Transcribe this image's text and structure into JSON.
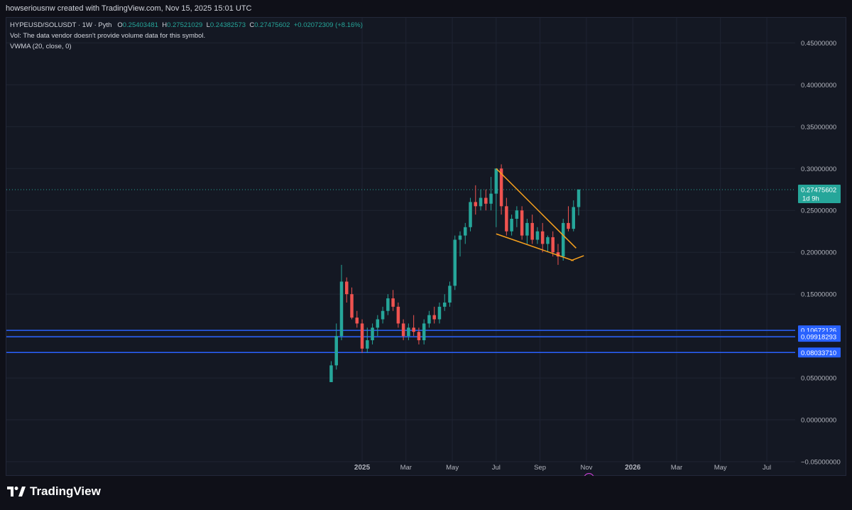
{
  "header": {
    "attribution": "howseriousnw created with TradingView.com, Nov 15, 2025 15:01 UTC"
  },
  "legend": {
    "symbol": "HYPEUSD/SOLUSDT · 1W · Pyth",
    "o_label": "O",
    "o_value": "0.25403481",
    "h_label": "H",
    "h_value": "0.27521029",
    "l_label": "L",
    "l_value": "0.24382573",
    "c_label": "C",
    "c_value": "0.27475602",
    "change": "+0.02072309 (+8.16%)",
    "vol_note": "Vol: The data vendor doesn't provide volume data for this symbol.",
    "indicator": "VWMA (20, close, 0)"
  },
  "footer": {
    "brand": "TradingView"
  },
  "colors": {
    "up": "#26a69a",
    "down": "#ef5350",
    "pattern": "#f7a01d",
    "level": "#2962ff",
    "background": "#141823",
    "grid": "#1f2433"
  },
  "chart_data": {
    "type": "candlestick",
    "timeframe": "1W",
    "ylim": [
      -0.05,
      0.48
    ],
    "y_ticks": [
      "0.45000000",
      "0.40000000",
      "0.35000000",
      "0.30000000",
      "0.25000000",
      "0.20000000",
      "0.15000000",
      "0.10000000",
      "0.05000000",
      "0.00000000",
      "−0.05000000"
    ],
    "y_tick_values": [
      0.45,
      0.4,
      0.35,
      0.3,
      0.25,
      0.2,
      0.15,
      0.1,
      0.05,
      0.0,
      -0.05
    ],
    "x_ticks": [
      {
        "label": "2025",
        "week": 3
      },
      {
        "label": "Mar",
        "week": 11.5
      },
      {
        "label": "May",
        "week": 20.5
      },
      {
        "label": "Jul",
        "week": 29
      },
      {
        "label": "Sep",
        "week": 37.5
      },
      {
        "label": "Nov",
        "week": 46.5
      },
      {
        "label": "2026",
        "week": 55.5
      },
      {
        "label": "Mar",
        "week": 64
      },
      {
        "label": "May",
        "week": 72.5
      },
      {
        "label": "Jul",
        "week": 81.5
      }
    ],
    "x_range_weeks": [
      -66,
      87
    ],
    "candles": [
      [
        0.045,
        0.07,
        0.045,
        0.065
      ],
      [
        0.065,
        0.115,
        0.06,
        0.1
      ],
      [
        0.1,
        0.185,
        0.095,
        0.165
      ],
      [
        0.165,
        0.17,
        0.14,
        0.15
      ],
      [
        0.15,
        0.158,
        0.12,
        0.122
      ],
      [
        0.122,
        0.13,
        0.11,
        0.115
      ],
      [
        0.115,
        0.12,
        0.08,
        0.085
      ],
      [
        0.085,
        0.11,
        0.08,
        0.095
      ],
      [
        0.095,
        0.115,
        0.09,
        0.11
      ],
      [
        0.11,
        0.125,
        0.1,
        0.12
      ],
      [
        0.12,
        0.135,
        0.115,
        0.13
      ],
      [
        0.13,
        0.15,
        0.125,
        0.145
      ],
      [
        0.145,
        0.155,
        0.13,
        0.135
      ],
      [
        0.135,
        0.14,
        0.11,
        0.115
      ],
      [
        0.115,
        0.12,
        0.095,
        0.1
      ],
      [
        0.1,
        0.115,
        0.095,
        0.11
      ],
      [
        0.11,
        0.125,
        0.1,
        0.105
      ],
      [
        0.105,
        0.11,
        0.09,
        0.095
      ],
      [
        0.095,
        0.12,
        0.09,
        0.115
      ],
      [
        0.115,
        0.13,
        0.11,
        0.125
      ],
      [
        0.125,
        0.135,
        0.115,
        0.12
      ],
      [
        0.12,
        0.14,
        0.115,
        0.135
      ],
      [
        0.135,
        0.15,
        0.13,
        0.14
      ],
      [
        0.14,
        0.165,
        0.135,
        0.16
      ],
      [
        0.16,
        0.22,
        0.155,
        0.215
      ],
      [
        0.215,
        0.225,
        0.195,
        0.22
      ],
      [
        0.22,
        0.235,
        0.21,
        0.23
      ],
      [
        0.23,
        0.265,
        0.225,
        0.26
      ],
      [
        0.26,
        0.28,
        0.245,
        0.255
      ],
      [
        0.255,
        0.275,
        0.25,
        0.265
      ],
      [
        0.265,
        0.275,
        0.25,
        0.258
      ],
      [
        0.258,
        0.29,
        0.25,
        0.27
      ],
      [
        0.27,
        0.3,
        0.23,
        0.3
      ],
      [
        0.3,
        0.305,
        0.245,
        0.255
      ],
      [
        0.255,
        0.265,
        0.22,
        0.225
      ],
      [
        0.225,
        0.245,
        0.22,
        0.24
      ],
      [
        0.24,
        0.255,
        0.23,
        0.25
      ],
      [
        0.25,
        0.255,
        0.215,
        0.22
      ],
      [
        0.22,
        0.24,
        0.21,
        0.235
      ],
      [
        0.235,
        0.245,
        0.21,
        0.215
      ],
      [
        0.215,
        0.23,
        0.21,
        0.225
      ],
      [
        0.225,
        0.235,
        0.2,
        0.21
      ],
      [
        0.21,
        0.22,
        0.2,
        0.218
      ],
      [
        0.218,
        0.225,
        0.195,
        0.2
      ],
      [
        0.2,
        0.21,
        0.185,
        0.195
      ],
      [
        0.195,
        0.24,
        0.19,
        0.235
      ],
      [
        0.235,
        0.255,
        0.225,
        0.228
      ],
      [
        0.228,
        0.262,
        0.225,
        0.254
      ],
      [
        0.254,
        0.275,
        0.244,
        0.275
      ]
    ],
    "first_candle_week": -3,
    "last_price": {
      "value": 0.27475602,
      "label": "0.27475602",
      "countdown": "1d 9h"
    },
    "horizontal_levels": [
      {
        "value": 0.10672126,
        "label": "0.10672126"
      },
      {
        "value": 0.09918293,
        "label": "0.09918293"
      },
      {
        "value": 0.0803371,
        "label": "0.08033710"
      }
    ],
    "falling_wedge": {
      "upper": [
        [
          29,
          0.3
        ],
        [
          44.5,
          0.205
        ]
      ],
      "lower": [
        [
          29,
          0.222
        ],
        [
          44,
          0.19
        ]
      ],
      "closing": [
        [
          43.5,
          0.19
        ],
        [
          46,
          0.196
        ]
      ]
    },
    "event_marker": {
      "week": 47,
      "value": -0.07,
      "icon": "lightning-icon"
    }
  }
}
